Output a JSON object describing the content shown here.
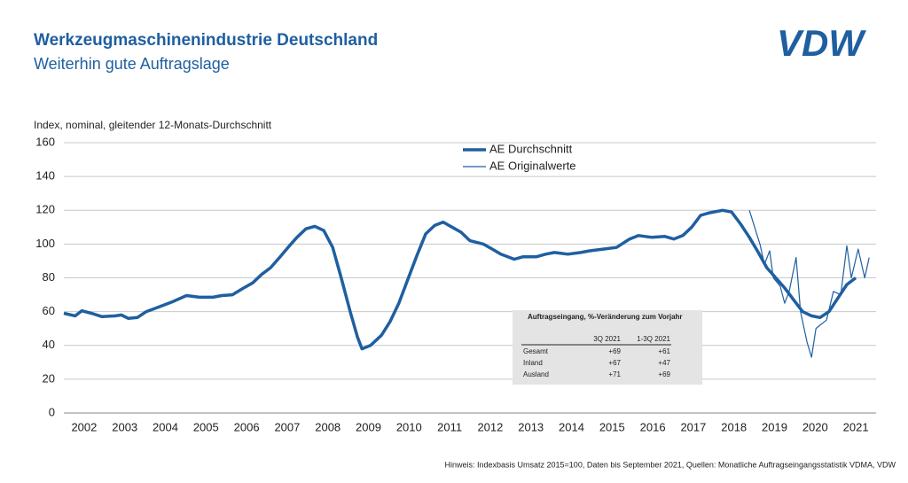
{
  "header": {
    "title": "Werkzeugmaschinenindustrie Deutschland",
    "subtitle": "Weiterhin gute Auftragslage",
    "logo": "VDW"
  },
  "chart_data": {
    "type": "line",
    "y_label": "Index, nominal, gleitender 12-Monats-Durchschnitt",
    "xlim": [
      2002,
      2022
    ],
    "xticks": [
      {
        "value": 2002.5,
        "label": "2002"
      },
      {
        "value": 2003.5,
        "label": "2003"
      },
      {
        "value": 2004.5,
        "label": "2004"
      },
      {
        "value": 2005.5,
        "label": "2005"
      },
      {
        "value": 2006.5,
        "label": "2006"
      },
      {
        "value": 2007.5,
        "label": "2007"
      },
      {
        "value": 2008.5,
        "label": "2008"
      },
      {
        "value": 2009.5,
        "label": "2009"
      },
      {
        "value": 2010.5,
        "label": "2010"
      },
      {
        "value": 2011.5,
        "label": "2011"
      },
      {
        "value": 2012.5,
        "label": "2012"
      },
      {
        "value": 2013.5,
        "label": "2013"
      },
      {
        "value": 2014.5,
        "label": "2014"
      },
      {
        "value": 2015.5,
        "label": "2015"
      },
      {
        "value": 2016.5,
        "label": "2016"
      },
      {
        "value": 2017.5,
        "label": "2017"
      },
      {
        "value": 2018.5,
        "label": "2018"
      },
      {
        "value": 2019.5,
        "label": "2019"
      },
      {
        "value": 2020.5,
        "label": "2020"
      },
      {
        "value": 2021.5,
        "label": "2021"
      }
    ],
    "ylim": [
      0,
      160
    ],
    "yticks": [
      0,
      20,
      40,
      60,
      80,
      100,
      120,
      140,
      160
    ],
    "grid": true,
    "series": [
      {
        "name": "AE Durchschnitt",
        "color": "#1f5fa0",
        "width": 3.5,
        "x": [
          2002.0,
          2002.28,
          2002.44,
          2002.68,
          2002.94,
          2003.27,
          2003.42,
          2003.59,
          2003.81,
          2004.03,
          2004.31,
          2004.69,
          2005.02,
          2005.34,
          2005.67,
          2005.89,
          2006.15,
          2006.43,
          2006.65,
          2006.87,
          2007.09,
          2007.31,
          2007.52,
          2007.74,
          2007.96,
          2008.18,
          2008.4,
          2008.62,
          2008.83,
          2009.05,
          2009.23,
          2009.34,
          2009.55,
          2009.82,
          2010.03,
          2010.25,
          2010.47,
          2010.69,
          2010.91,
          2011.13,
          2011.34,
          2011.56,
          2011.78,
          2012.0,
          2012.33,
          2012.55,
          2012.76,
          2013.09,
          2013.31,
          2013.64,
          2013.86,
          2014.08,
          2014.41,
          2014.73,
          2014.95,
          2015.28,
          2015.61,
          2015.93,
          2016.15,
          2016.48,
          2016.8,
          2017.02,
          2017.24,
          2017.46,
          2017.68,
          2017.9,
          2018.22,
          2018.44,
          2018.66,
          2018.88,
          2019.1,
          2019.31,
          2019.53,
          2019.75,
          2019.97,
          2020.19,
          2020.41,
          2020.62,
          2020.84,
          2021.06,
          2021.28,
          2021.5
        ],
        "values": [
          59,
          57.5,
          60.5,
          59,
          57,
          57.5,
          58,
          56,
          56.5,
          60,
          62.5,
          66,
          69.5,
          68.5,
          68.5,
          69.5,
          70,
          74,
          77,
          82,
          86,
          92,
          98,
          104,
          109,
          110.5,
          108,
          98,
          80,
          60,
          45,
          38,
          40,
          46,
          54,
          65,
          79,
          93,
          106,
          111,
          113,
          110,
          107,
          102,
          100,
          97,
          94,
          91,
          92.5,
          92.5,
          94,
          95,
          94,
          95,
          96,
          97,
          98,
          103,
          105,
          104,
          104.5,
          103,
          105,
          110,
          117,
          118.5,
          120,
          119,
          112,
          104,
          95,
          86,
          80,
          74,
          67,
          60,
          57.5,
          56.5,
          60,
          68,
          76,
          80
        ]
      },
      {
        "name": "AE Originalwerte",
        "color": "#1f5fa0",
        "width": 1.2,
        "x": [
          2018.88,
          2019.14,
          2019.25,
          2019.38,
          2019.47,
          2019.64,
          2019.75,
          2019.86,
          2020.03,
          2020.14,
          2020.3,
          2020.41,
          2020.52,
          2020.62,
          2020.78,
          2020.95,
          2021.13,
          2021.28,
          2021.39,
          2021.56,
          2021.72,
          2021.83
        ],
        "values": [
          120,
          100,
          88,
          96,
          80,
          75,
          65,
          72,
          92,
          60,
          42,
          33,
          50,
          52,
          55,
          72,
          70,
          99,
          80,
          97,
          80,
          92
        ]
      }
    ],
    "table": {
      "title": "Auftragseingang, %-Veränderung zum Vorjahr",
      "columns": [
        "3Q 2021",
        "1-3Q 2021"
      ],
      "rows": [
        [
          "Gesamt",
          "+69",
          "+61"
        ],
        [
          "Inland",
          "+67",
          "+47"
        ],
        [
          "Ausland",
          "+71",
          "+69"
        ]
      ]
    }
  },
  "footnote": "Hinweis: Indexbasis Umsatz 2015=100, Daten bis September 2021, Quellen: Monatliche Auftragseingangsstatistik VDMA, VDW"
}
